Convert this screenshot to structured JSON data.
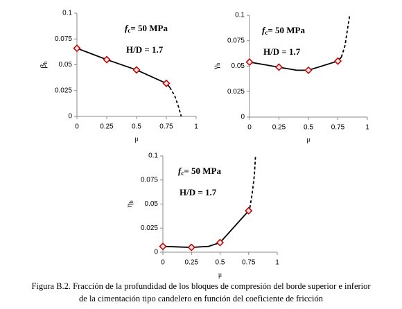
{
  "charts": [
    {
      "type": "line",
      "ylabel": "β",
      "ylabel_sub": "h",
      "xlabel": "μ",
      "xlim": [
        0,
        1
      ],
      "ylim": [
        0,
        0.1
      ],
      "xticks": [
        0,
        0.25,
        0.5,
        0.75,
        1
      ],
      "yticks": [
        0,
        0.025,
        0.05,
        0.075,
        0.1
      ],
      "annotations": [
        "f",
        "c",
        "= 50 MPa",
        "H/D = 1.7"
      ],
      "series": [
        {
          "style": "solid",
          "color": "#000000",
          "x": [
            0,
            0.25,
            0.5,
            0.75,
            0.78
          ],
          "values": [
            0.066,
            0.055,
            0.045,
            0.032,
            0.028
          ]
        },
        {
          "style": "dashed",
          "color": "#000000",
          "x": [
            0.78,
            0.82,
            0.85,
            0.875
          ],
          "values": [
            0.028,
            0.02,
            0.01,
            0
          ]
        },
        {
          "style": "markers",
          "color": "#c00000",
          "x": [
            0,
            0.25,
            0.5,
            0.75
          ],
          "values": [
            0.066,
            0.055,
            0.045,
            0.032
          ]
        }
      ]
    },
    {
      "type": "line",
      "ylabel": "γ",
      "ylabel_sub": "h",
      "xlabel": "μ",
      "xlim": [
        0,
        1
      ],
      "ylim": [
        0,
        0.1
      ],
      "xticks": [
        0,
        0.25,
        0.5,
        0.75,
        1
      ],
      "yticks": [
        0,
        0.025,
        0.05,
        0.075,
        0.1
      ],
      "annotations": [
        "f",
        "c",
        "= 50 MPa",
        "H/D = 1.7"
      ],
      "series": [
        {
          "style": "solid",
          "color": "#000000",
          "x": [
            0,
            0.25,
            0.4,
            0.5,
            0.75,
            0.78
          ],
          "values": [
            0.054,
            0.049,
            0.046,
            0.046,
            0.055,
            0.059
          ]
        },
        {
          "style": "dashed",
          "color": "#000000",
          "x": [
            0.78,
            0.81,
            0.83,
            0.85
          ],
          "values": [
            0.059,
            0.07,
            0.085,
            0.1
          ]
        },
        {
          "style": "markers",
          "color": "#c00000",
          "x": [
            0,
            0.25,
            0.5,
            0.75
          ],
          "values": [
            0.054,
            0.049,
            0.046,
            0.055
          ]
        }
      ]
    },
    {
      "type": "line",
      "ylabel": "η",
      "ylabel_sub": "b",
      "xlabel": "μ",
      "xlim": [
        0,
        1
      ],
      "ylim": [
        0,
        0.1
      ],
      "xticks": [
        0,
        0.25,
        0.5,
        0.75,
        1
      ],
      "yticks": [
        0,
        0.025,
        0.05,
        0.075,
        0.1
      ],
      "annotations": [
        "f",
        "c",
        "= 50 MPa",
        "H/D = 1.7"
      ],
      "series": [
        {
          "style": "solid",
          "color": "#000000",
          "x": [
            0,
            0.25,
            0.4,
            0.5,
            0.75,
            0.76
          ],
          "values": [
            0.006,
            0.005,
            0.006,
            0.01,
            0.043,
            0.046
          ]
        },
        {
          "style": "dashed",
          "color": "#000000",
          "x": [
            0.76,
            0.78,
            0.8,
            0.81
          ],
          "values": [
            0.046,
            0.06,
            0.08,
            0.1
          ]
        },
        {
          "style": "markers",
          "color": "#c00000",
          "x": [
            0,
            0.25,
            0.5,
            0.75
          ],
          "values": [
            0.006,
            0.005,
            0.01,
            0.043
          ]
        }
      ]
    }
  ],
  "caption": [
    "Figura B.2. Fracción de la profundidad de los bloques de compresión del borde superior e inferior",
    "de la cimentación tipo candelero en función del coeficiente de fricción"
  ]
}
